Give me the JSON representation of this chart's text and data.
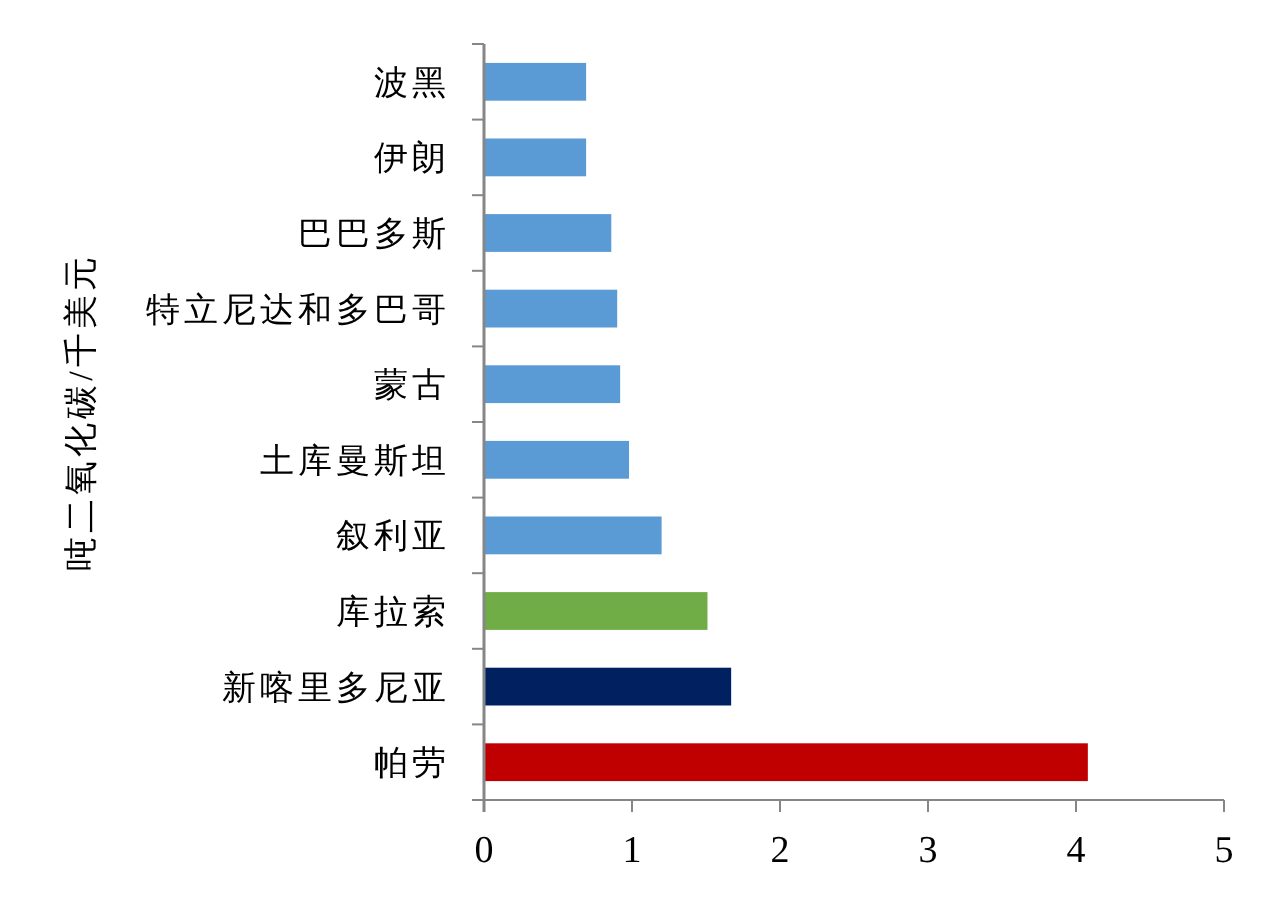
{
  "chart_data": {
    "type": "bar",
    "orientation": "horizontal",
    "ylabel": "吨二氧化碳/千美元",
    "categories": [
      "波黑",
      "伊朗",
      "巴巴多斯",
      "特立尼达和多巴哥",
      "蒙古",
      "土库曼斯坦",
      "叙利亚",
      "库拉索",
      "新喀里多尼亚",
      "帕劳"
    ],
    "values": [
      0.69,
      0.69,
      0.86,
      0.9,
      0.92,
      0.98,
      1.2,
      1.51,
      1.67,
      4.08
    ],
    "colors": [
      "#5b9bd5",
      "#5b9bd5",
      "#5b9bd5",
      "#5b9bd5",
      "#5b9bd5",
      "#5b9bd5",
      "#5b9bd5",
      "#70ad47",
      "#002060",
      "#c00000"
    ],
    "xlim": [
      0,
      5
    ],
    "xticks": [
      0,
      1,
      2,
      3,
      4,
      5
    ]
  }
}
